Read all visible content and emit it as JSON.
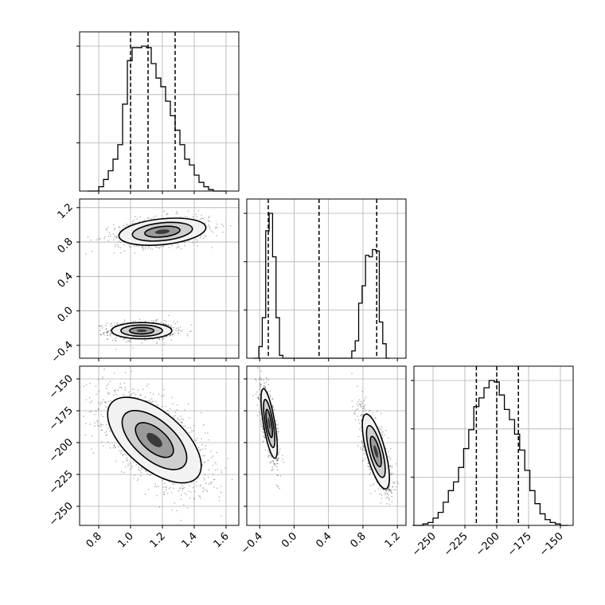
{
  "chart_data": {
    "type": "corner",
    "params": [
      {
        "ticks": [
          "0.8",
          "1.0",
          "1.2",
          "1.4",
          "1.6"
        ],
        "tick_values": [
          0.8,
          1.0,
          1.2,
          1.4,
          1.6
        ],
        "range": [
          0.68,
          1.68
        ]
      },
      {
        "ticks": [
          "−0.4",
          "0.0",
          "0.4",
          "0.8",
          "1.2"
        ],
        "tick_values": [
          -0.4,
          0.0,
          0.4,
          0.8,
          1.2
        ],
        "range": [
          -0.55,
          1.3
        ]
      },
      {
        "ticks": [
          "−250",
          "−225",
          "−200",
          "−175",
          "−150"
        ],
        "tick_values": [
          -250,
          -225,
          -200,
          -175,
          -150
        ],
        "range": [
          -265,
          -140
        ]
      }
    ],
    "diagonal": [
      {
        "param": 0,
        "quantiles": [
          1.0,
          1.11,
          1.28
        ],
        "bin_edges": [
          0.73,
          0.8,
          0.83,
          0.86,
          0.89,
          0.92,
          0.95,
          0.98,
          1.01,
          1.04,
          1.07,
          1.1,
          1.13,
          1.16,
          1.19,
          1.22,
          1.25,
          1.28,
          1.31,
          1.34,
          1.37,
          1.4,
          1.43,
          1.46,
          1.49,
          1.52,
          1.6
        ],
        "counts": [
          0,
          3,
          8,
          14,
          22,
          32,
          60,
          90,
          99,
          99,
          100,
          99,
          88,
          78,
          72,
          62,
          52,
          42,
          32,
          22,
          18,
          11,
          6,
          3,
          1,
          0
        ]
      },
      {
        "param": 1,
        "quantiles": [
          -0.3,
          0.29,
          0.96
        ],
        "bin_edges": [
          -0.47,
          -0.41,
          -0.37,
          -0.33,
          -0.29,
          -0.25,
          -0.21,
          -0.17,
          -0.13,
          -0.09,
          0.6,
          0.67,
          0.71,
          0.75,
          0.79,
          0.83,
          0.87,
          0.91,
          0.95,
          0.99,
          1.03,
          1.07,
          1.11
        ],
        "counts": [
          0,
          8,
          28,
          88,
          100,
          70,
          28,
          2,
          0,
          0,
          0,
          5,
          12,
          38,
          50,
          71,
          70,
          75,
          74,
          25,
          10,
          0
        ]
      },
      {
        "param": 2,
        "quantiles": [
          -216,
          -200,
          -183
        ],
        "bin_edges": [
          -266,
          -258,
          -254,
          -250,
          -246,
          -242,
          -238,
          -234,
          -230,
          -226,
          -222,
          -218,
          -214,
          -210,
          -206,
          -202,
          -198,
          -194,
          -190,
          -186,
          -182,
          -178,
          -174,
          -170,
          -166,
          -162,
          -158,
          -154,
          -150,
          -144
        ],
        "counts": [
          0,
          1,
          2,
          5,
          9,
          16,
          24,
          30,
          40,
          53,
          66,
          82,
          88,
          95,
          100,
          99,
          90,
          80,
          73,
          63,
          52,
          38,
          24,
          15,
          8,
          4,
          2,
          1,
          0
        ]
      }
    ],
    "scatter_panels": [
      {
        "x_param": 0,
        "y_param": 1,
        "modes": [
          {
            "center": [
              1.07,
              -0.23
            ],
            "spread": [
              0.09,
              0.045
            ],
            "rho": 0.0,
            "weight": 0.5
          },
          {
            "center": [
              1.2,
              0.92
            ],
            "spread": [
              0.13,
              0.075
            ],
            "rho": 0.3,
            "weight": 0.5
          }
        ]
      },
      {
        "x_param": 0,
        "y_param": 2,
        "modes": [
          {
            "center": [
              1.15,
              -198
            ],
            "spread": [
              0.14,
              16
            ],
            "rho": -0.6,
            "weight": 1.0
          }
        ]
      },
      {
        "x_param": 1,
        "y_param": 2,
        "modes": [
          {
            "center": [
              -0.29,
              -185
            ],
            "spread": [
              0.045,
              13
            ],
            "rho": -0.7,
            "weight": 0.5
          },
          {
            "center": [
              0.95,
              -207
            ],
            "spread": [
              0.075,
              14
            ],
            "rho": -0.7,
            "weight": 0.5
          }
        ]
      }
    ]
  }
}
